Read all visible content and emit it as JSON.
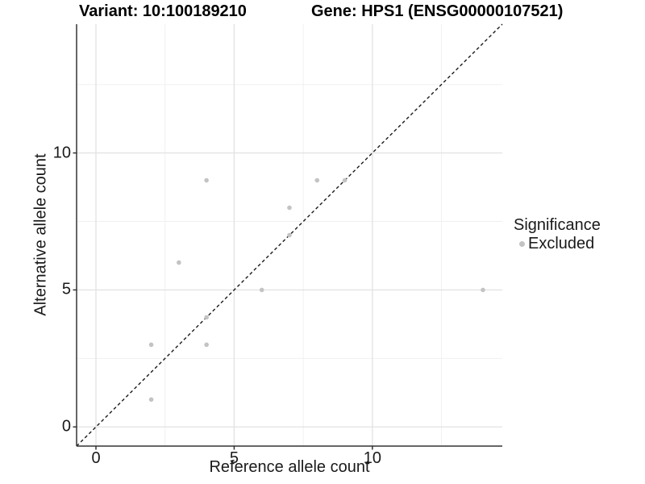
{
  "colors": {
    "point": "#c3c3c3",
    "grid_major": "#e2e2e2",
    "grid_minor": "#f0f0f0",
    "axis_line": "#333333",
    "ref_line": "#1a1a1a",
    "background": "#ffffff"
  },
  "chart_data": {
    "type": "scatter",
    "titles": [
      "Variant: 10:100189210",
      "Gene: HPS1 (ENSG00000107521)"
    ],
    "xlabel": "Reference allele count",
    "ylabel": "Alternative allele count",
    "xlim": [
      -0.7,
      14.7
    ],
    "ylim": [
      -0.7,
      14.7
    ],
    "xticks": [
      0,
      5,
      10
    ],
    "yticks": [
      0,
      5,
      10
    ],
    "xticklabels": [
      "0",
      "5",
      "10"
    ],
    "yticklabels": [
      "0",
      "5",
      "10"
    ],
    "minor_ticks": [
      2.5,
      7.5,
      12.5
    ],
    "grid": true,
    "series": [
      {
        "name": "Excluded",
        "color": "#c3c3c3",
        "points": [
          [
            2,
            1
          ],
          [
            2,
            3
          ],
          [
            4,
            3
          ],
          [
            4,
            4
          ],
          [
            3,
            6
          ],
          [
            6,
            5
          ],
          [
            7,
            7
          ],
          [
            7,
            8
          ],
          [
            4,
            9
          ],
          [
            8,
            9
          ],
          [
            9,
            9
          ],
          [
            14,
            5
          ]
        ]
      }
    ],
    "reference_line": {
      "style": "dashed",
      "from": [
        -0.7,
        -0.7
      ],
      "to": [
        14.7,
        14.7
      ]
    },
    "legend": {
      "title": "Significance",
      "position": "right",
      "items": [
        {
          "label": "Excluded",
          "color": "#c3c3c3"
        }
      ]
    }
  }
}
